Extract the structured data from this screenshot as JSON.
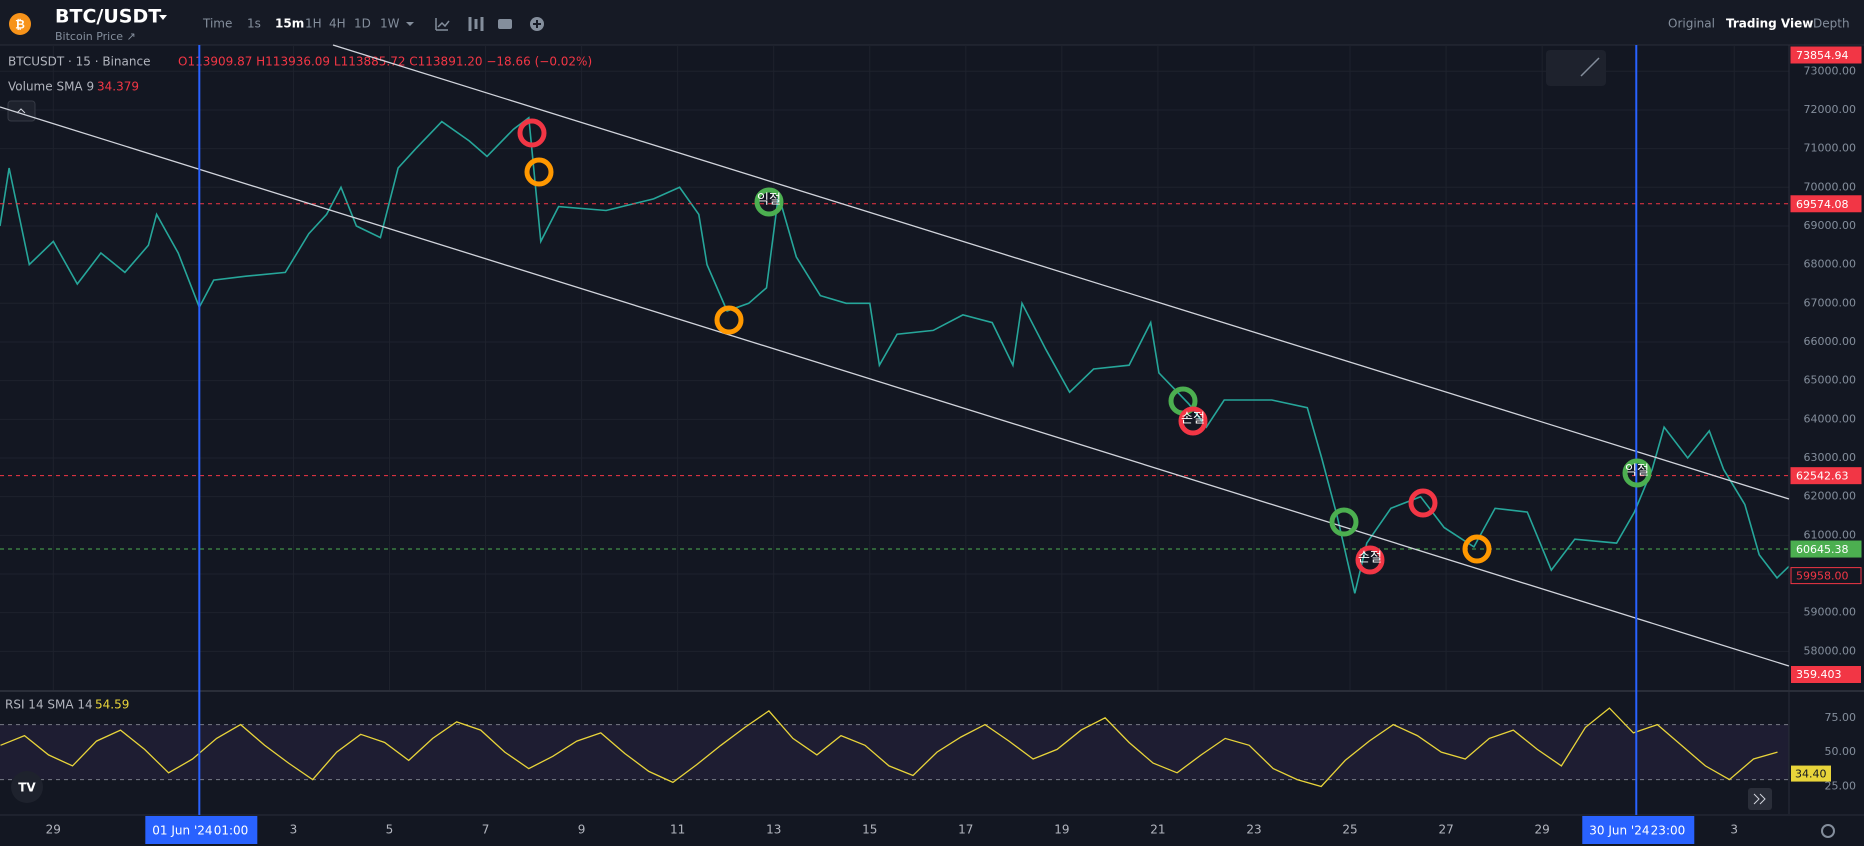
{
  "header": {
    "symbol": "BTC/USDT",
    "subtitle": "Bitcoin Price ↗",
    "intervals": [
      "Time",
      "1s",
      "15m",
      "1H",
      "4H",
      "1D",
      "1W"
    ],
    "views": [
      "Original",
      "Trading View",
      "Depth"
    ]
  },
  "legend": {
    "instrument": "BTCUSDT · 15 · Binance",
    "ohlc": "O113909.87 H113936.09 L113885.72 C113891.20 −18.66 (−0.02%)",
    "volume_label": "Volume SMA 9",
    "volume_value": "34.379",
    "volume_tag": "359.403",
    "rsi_label": "RSI 14 SMA 14",
    "rsi_value": "54.59"
  },
  "annotation_labels": [
    "익절",
    "손절",
    "손절",
    "익절"
  ],
  "chart_data": [
    {
      "type": "line",
      "color": "#26a69a",
      "xlim": [
        -1.11,
        36.14
      ],
      "ylim": [
        57000,
        73680
      ],
      "x": [
        -1.11,
        -0.92,
        -0.5,
        0,
        0.5,
        0.99,
        1.49,
        1.98,
        2.15,
        2.6,
        3.04,
        3.34,
        4.01,
        4.83,
        5.32,
        5.69,
        5.99,
        6.31,
        6.81,
        7.18,
        7.55,
        8.09,
        8.66,
        9.03,
        9.58,
        9.9,
        10.15,
        10.52,
        11.51,
        12.5,
        13.04,
        13.44,
        13.61,
        14.03,
        14.48,
        14.85,
        15.1,
        15.47,
        15.97,
        16.51,
        17,
        17.2,
        17.57,
        18.32,
        18.94,
        19.55,
        19.98,
        20.17,
        20.67,
        21.16,
        21.66,
        22.4,
        22.85,
        23.02,
        23.64,
        24.01,
        24.38,
        25.37,
        26.11,
        26.41,
        26.73,
        27.1,
        27.35,
        27.85,
        28.47,
        28.96,
        29.58,
        30.02,
        30.69,
        31.19,
        31.68,
        32.55,
        32.92,
        33.29,
        33.54,
        34.03,
        34.48,
        34.78,
        35.22,
        35.52,
        35.89,
        36.14
      ],
      "values": [
        69000,
        70500,
        68000,
        68600,
        67500,
        68300,
        67800,
        68500,
        69300,
        68300,
        66900,
        67600,
        67700,
        67800,
        68800,
        69300,
        70000,
        69000,
        68700,
        70500,
        71000,
        71700,
        71200,
        70800,
        71500,
        71800,
        68600,
        69500,
        69400,
        69700,
        70000,
        69300,
        68000,
        66800,
        67000,
        67400,
        69800,
        68200,
        67200,
        67000,
        67000,
        65400,
        66200,
        66300,
        66700,
        66500,
        65400,
        67000,
        65800,
        64700,
        65300,
        65400,
        66500,
        65200,
        64400,
        63800,
        64500,
        64500,
        64300,
        63000,
        61500,
        59500,
        60800,
        61700,
        62000,
        61200,
        60700,
        61700,
        61600,
        60100,
        60900,
        60800,
        61600,
        62700,
        63800,
        63000,
        63700,
        62700,
        61800,
        60500,
        59900,
        60200
      ],
      "yticks": [
        {
          "value": 58000,
          "label": "58000.00"
        },
        {
          "value": 59000,
          "label": "59000.00"
        },
        {
          "value": 60000,
          "label": "60000.00"
        },
        {
          "value": 61000,
          "label": "61000.00"
        },
        {
          "value": 62000,
          "label": "62000.00"
        },
        {
          "value": 63000,
          "label": "63000.00"
        },
        {
          "value": 64000,
          "label": "64000.00"
        },
        {
          "value": 65000,
          "label": "65000.00"
        },
        {
          "value": 66000,
          "label": "66000.00"
        },
        {
          "value": 67000,
          "label": "67000.00"
        },
        {
          "value": 68000,
          "label": "68000.00"
        },
        {
          "value": 69000,
          "label": "69000.00"
        },
        {
          "value": 70000,
          "label": "70000.00"
        },
        {
          "value": 71000,
          "label": "71000.00"
        },
        {
          "value": 72000,
          "label": "72000.00"
        },
        {
          "value": 73000,
          "label": "73000.00"
        }
      ],
      "xticks": [
        {
          "value": 0,
          "label": "29"
        },
        {
          "value": 5,
          "label": "3"
        },
        {
          "value": 7,
          "label": "5"
        },
        {
          "value": 9,
          "label": "7"
        },
        {
          "value": 11,
          "label": "9"
        },
        {
          "value": 13,
          "label": "11"
        },
        {
          "value": 15,
          "label": "13"
        },
        {
          "value": 17,
          "label": "15"
        },
        {
          "value": 19,
          "label": "17"
        },
        {
          "value": 21,
          "label": "19"
        },
        {
          "value": 23,
          "label": "21"
        },
        {
          "value": 25,
          "label": "23"
        },
        {
          "value": 27,
          "label": "25"
        },
        {
          "value": 29,
          "label": "27"
        },
        {
          "value": 31,
          "label": "29"
        },
        {
          "value": 35,
          "label": "3"
        }
      ],
      "cursors": [
        {
          "value": 3.04,
          "label": "01 Jun '24",
          "time": "01:00"
        },
        {
          "value": 32.96,
          "label": "30 Jun '24",
          "time": "23:00"
        }
      ],
      "price_lines": [
        {
          "value": 73854.94,
          "label": "73854.94",
          "color": "#f23645",
          "dashed": false,
          "outline": false
        },
        {
          "value": 69574.08,
          "label": "69574.08",
          "color": "#f23645",
          "dashed": true,
          "outline": false
        },
        {
          "value": 62542.63,
          "label": "62542.63",
          "color": "#f23645",
          "dashed": true,
          "outline": false
        },
        {
          "value": 60645.38,
          "label": "60645.38",
          "color": "#4caf50",
          "dashed": true,
          "outline": false
        },
        {
          "value": 59958,
          "label": "59958.00",
          "color": "#f23645",
          "dashed": false,
          "outline": true
        }
      ],
      "grid": true
    },
    {
      "type": "line",
      "color": "#e8d43a",
      "xlim": [
        -1.11,
        36.14
      ],
      "ylim": [
        5,
        93
      ],
      "band": [
        30,
        70
      ],
      "x": [
        -1.1,
        -0.6,
        -0.1,
        0.4,
        0.9,
        1.4,
        1.9,
        2.4,
        2.9,
        3.4,
        3.9,
        4.4,
        4.9,
        5.4,
        5.9,
        6.4,
        6.9,
        7.4,
        7.9,
        8.4,
        8.9,
        9.4,
        9.9,
        10.4,
        10.9,
        11.4,
        11.9,
        12.4,
        12.9,
        13.4,
        13.9,
        14.4,
        14.9,
        15.4,
        15.9,
        16.4,
        16.9,
        17.4,
        17.9,
        18.4,
        18.9,
        19.4,
        19.9,
        20.4,
        20.9,
        21.4,
        21.9,
        22.4,
        22.9,
        23.4,
        23.9,
        24.4,
        24.9,
        25.4,
        25.9,
        26.4,
        26.9,
        27.4,
        27.9,
        28.4,
        28.9,
        29.4,
        29.9,
        30.4,
        30.9,
        31.4,
        31.9,
        32.4,
        32.9,
        33.4,
        33.9,
        34.4,
        34.9,
        35.4,
        35.9
      ],
      "values": [
        55,
        62,
        48,
        40,
        58,
        66,
        52,
        35,
        45,
        60,
        70,
        55,
        42,
        30,
        50,
        63,
        57,
        44,
        60,
        72,
        66,
        50,
        38,
        47,
        58,
        64,
        49,
        36,
        28,
        41,
        55,
        68,
        80,
        60,
        48,
        62,
        55,
        40,
        33,
        50,
        61,
        70,
        58,
        45,
        52,
        66,
        75,
        57,
        42,
        35,
        48,
        60,
        55,
        38,
        30,
        25,
        44,
        58,
        70,
        62,
        50,
        45,
        60,
        66,
        52,
        40,
        68,
        82,
        64,
        70,
        55,
        40,
        30,
        45,
        50
      ],
      "yticks": [
        {
          "value": 25,
          "label": "25.00"
        },
        {
          "value": 50,
          "label": "50.00"
        },
        {
          "value": 75,
          "label": "75.00"
        }
      ],
      "current": {
        "value": 34.4,
        "label": "34.40"
      }
    }
  ]
}
